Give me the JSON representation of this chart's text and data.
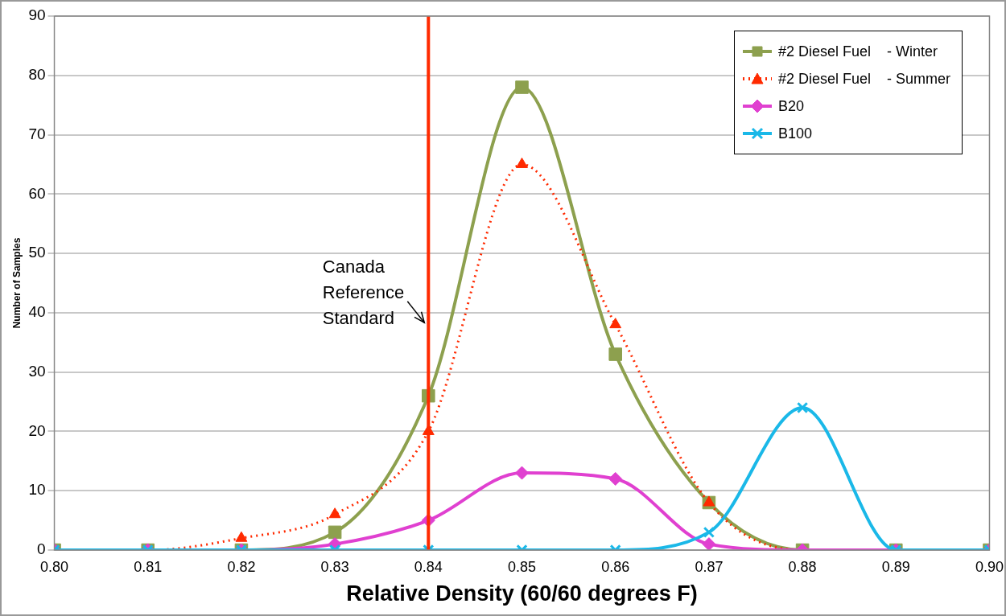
{
  "chart_data": {
    "type": "line",
    "xlabel": "Relative Density (60/60 degrees F)",
    "ylabel": "Number of Samples",
    "x": [
      0.8,
      0.81,
      0.82,
      0.83,
      0.84,
      0.85,
      0.86,
      0.87,
      0.88,
      0.89,
      0.9
    ],
    "series": [
      {
        "name": "#2 Diesel Fuel    - Winter",
        "color": "#8da04e",
        "marker": "square",
        "line_style": "solid",
        "values": [
          0,
          0,
          0,
          3,
          26,
          78,
          33,
          8,
          0,
          0,
          0
        ]
      },
      {
        "name": "#2 Diesel Fuel    - Summer",
        "color": "#ff2a00",
        "marker": "triangle",
        "line_style": "dotted",
        "values": [
          0,
          0,
          2,
          6,
          20,
          65,
          38,
          8,
          0,
          0,
          0
        ]
      },
      {
        "name": "B20",
        "color": "#e040d0",
        "marker": "diamond",
        "line_style": "solid",
        "values": [
          0,
          0,
          0,
          1,
          5,
          13,
          12,
          1,
          0,
          0,
          0
        ]
      },
      {
        "name": "B100",
        "color": "#1ab8e8",
        "marker": "cross",
        "line_style": "solid",
        "values": [
          0,
          0,
          0,
          0,
          0,
          0,
          0,
          3,
          24,
          0,
          0
        ]
      }
    ],
    "xlim": [
      0.8,
      0.9
    ],
    "xticks": [
      {
        "value": 0.8,
        "label": "0.80"
      },
      {
        "value": 0.81,
        "label": "0.81"
      },
      {
        "value": 0.82,
        "label": "0.82"
      },
      {
        "value": 0.83,
        "label": "0.83"
      },
      {
        "value": 0.84,
        "label": "0.84"
      },
      {
        "value": 0.85,
        "label": "0.85"
      },
      {
        "value": 0.86,
        "label": "0.86"
      },
      {
        "value": 0.87,
        "label": "0.87"
      },
      {
        "value": 0.88,
        "label": "0.88"
      },
      {
        "value": 0.89,
        "label": "0.89"
      },
      {
        "value": 0.9,
        "label": "0.90"
      }
    ],
    "ylim": [
      0,
      90
    ],
    "yticks": [
      0,
      10,
      20,
      30,
      40,
      50,
      60,
      70,
      80,
      90
    ],
    "ref_lines": [
      {
        "axis": "x",
        "value": 0.84,
        "label": "Canada\nReference\nStandard",
        "color": "#ff2a00"
      }
    ],
    "grid": "y",
    "legend": "top right"
  }
}
